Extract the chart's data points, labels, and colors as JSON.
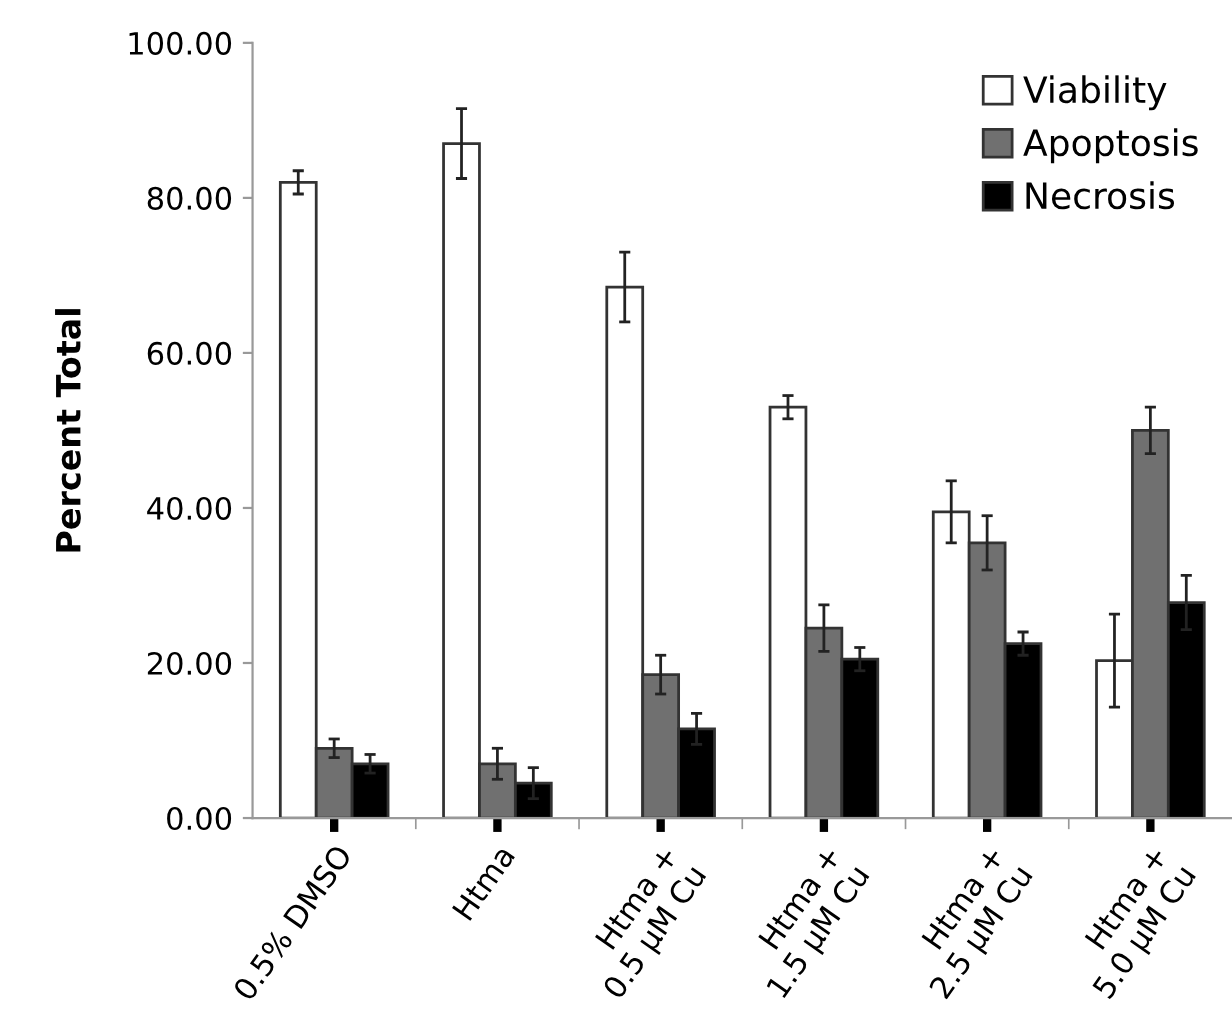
{
  "chart_data": {
    "type": "bar",
    "ylabel": "Percent Total",
    "categories": [
      "0.5% DMSO",
      "Htma",
      "Htma +\n0.5 µM Cu",
      "Htma +\n1.5 µM Cu",
      "Htma +\n2.5 µM Cu",
      "Htma +\n5.0 µM Cu"
    ],
    "series": [
      {
        "name": "Viability",
        "color": "#ffffff",
        "values": [
          82,
          87,
          68.5,
          53,
          39.5,
          20.3
        ],
        "errors": [
          1.5,
          4.5,
          4.5,
          1.5,
          4,
          6
        ]
      },
      {
        "name": "Apoptosis",
        "color": "#707070",
        "values": [
          9,
          7,
          18.5,
          24.5,
          35.5,
          50
        ],
        "errors": [
          1.2,
          2,
          2.5,
          3,
          3.5,
          3
        ]
      },
      {
        "name": "Necrosis",
        "color": "#000000",
        "values": [
          7,
          4.5,
          11.5,
          20.5,
          22.5,
          27.8
        ],
        "errors": [
          1.2,
          2,
          2,
          1.5,
          1.5,
          3.5
        ]
      }
    ],
    "ylim": [
      0,
      100
    ],
    "yticks": [
      {
        "value": 0,
        "label": "0.00"
      },
      {
        "value": 20,
        "label": "20.00"
      },
      {
        "value": 40,
        "label": "40.00"
      },
      {
        "value": 60,
        "label": "60.00"
      },
      {
        "value": 80,
        "label": "80.00"
      },
      {
        "value": 100,
        "label": "100.00"
      }
    ],
    "grid": false,
    "legend": "top right"
  }
}
